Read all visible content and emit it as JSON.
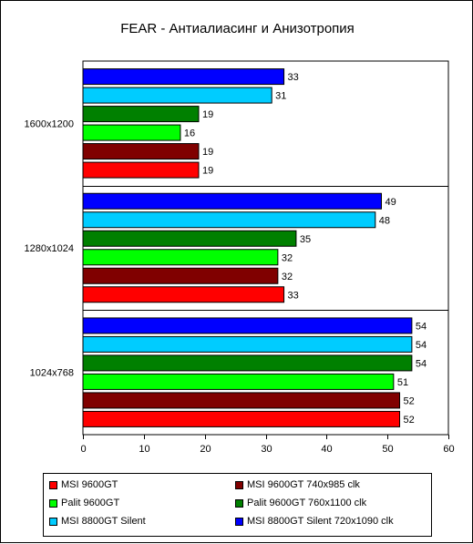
{
  "chart_data": {
    "type": "bar",
    "orientation": "horizontal",
    "title": "FEAR - Антиалиасинг и Анизотропия",
    "categories": [
      "1600x1200",
      "1280x1024",
      "1024x768"
    ],
    "series": [
      {
        "name": "MSI 9600GT",
        "color": "#ff0000",
        "values": [
          19,
          33,
          52
        ]
      },
      {
        "name": "MSI 9600GT 740x985 clk",
        "color": "#800000",
        "values": [
          19,
          32,
          52
        ]
      },
      {
        "name": "Palit 9600GT",
        "color": "#00ff00",
        "values": [
          16,
          32,
          51
        ]
      },
      {
        "name": "Palit 9600GT 760x1100 clk",
        "color": "#008000",
        "values": [
          19,
          35,
          54
        ]
      },
      {
        "name": "MSI 8800GT Silent",
        "color": "#00ccff",
        "values": [
          31,
          48,
          54
        ]
      },
      {
        "name": "MSI 8800GT Silent 720x1090 clk",
        "color": "#0000ff",
        "values": [
          33,
          49,
          54
        ]
      }
    ],
    "xlim": [
      0,
      60
    ],
    "xticks": [
      0,
      10,
      20,
      30,
      40,
      50,
      60
    ],
    "grid": true,
    "legend_position": "bottom"
  }
}
